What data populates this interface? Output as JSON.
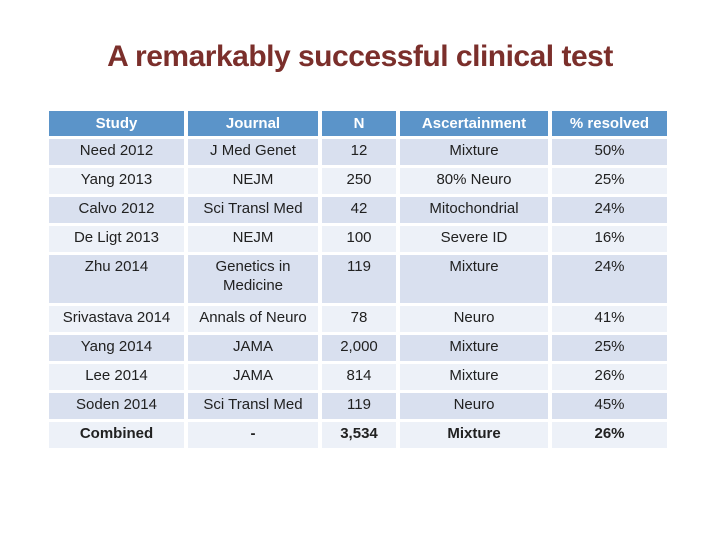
{
  "slide": {
    "title": "A remarkably successful clinical test"
  },
  "colors": {
    "title": "#7B2F2B",
    "header_bg": "#5B94C9",
    "header_text": "#FFFFFF",
    "band_dark": "#D9E0EF",
    "band_light": "#EDF1F8",
    "cell_text": "#212121"
  },
  "table": {
    "columns": [
      "Study",
      "Journal",
      "N",
      "Ascertainment",
      "% resolved"
    ],
    "rows": [
      {
        "cells": [
          "Need 2012",
          "J Med Genet",
          "12",
          "Mixture",
          "50%"
        ]
      },
      {
        "cells": [
          "Yang 2013",
          "NEJM",
          "250",
          "80% Neuro",
          "25%"
        ]
      },
      {
        "cells": [
          "Calvo 2012",
          "Sci Transl Med",
          "42",
          "Mitochondrial",
          "24%"
        ]
      },
      {
        "cells": [
          "De Ligt 2013",
          "NEJM",
          "100",
          "Severe ID",
          "16%"
        ]
      },
      {
        "cells": [
          "Zhu 2014",
          "Genetics in Medicine",
          "119",
          "Mixture",
          "24%"
        ]
      },
      {
        "cells": [
          "Srivastava 2014",
          "Annals of Neuro",
          "78",
          "Neuro",
          "41%"
        ]
      },
      {
        "cells": [
          "Yang 2014",
          "JAMA",
          "2,000",
          "Mixture",
          "25%"
        ]
      },
      {
        "cells": [
          "Lee 2014",
          "JAMA",
          "814",
          "Mixture",
          "26%"
        ]
      },
      {
        "cells": [
          "Soden 2014",
          "Sci Transl Med",
          "119",
          "Neuro",
          "45%"
        ]
      },
      {
        "cells": [
          "Combined",
          "-",
          "3,534",
          "Mixture",
          "26%"
        ]
      }
    ]
  }
}
